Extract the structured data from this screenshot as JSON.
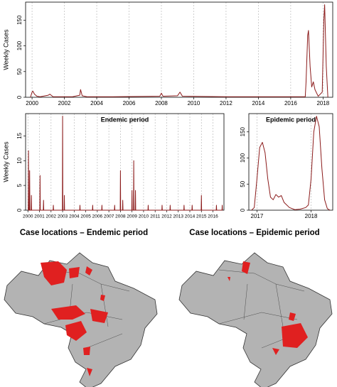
{
  "chart_data": [
    {
      "type": "line",
      "ylabel": "Weekly Cases",
      "color": "#8b1a1a",
      "x": [
        1999.9,
        2000.0,
        2000.05,
        2000.15,
        2000.3,
        2000.5,
        2001.0,
        2001.1,
        2001.3,
        2002.5,
        2002.95,
        2003.0,
        2003.1,
        2003.4,
        2005,
        2007.9,
        2008.0,
        2008.1,
        2009.0,
        2009.15,
        2009.3,
        2012,
        2016.9,
        2016.95,
        2017.05,
        2017.1,
        2017.2,
        2017.3,
        2017.4,
        2017.5,
        2017.7,
        2017.95,
        2018.05,
        2018.1,
        2018.2,
        2018.3
      ],
      "values": [
        0,
        10,
        12,
        6,
        2,
        1,
        4,
        6,
        1,
        1,
        4,
        15,
        3,
        1,
        1,
        2,
        8,
        2,
        3,
        10,
        2,
        1,
        1,
        30,
        120,
        130,
        60,
        20,
        30,
        15,
        2,
        10,
        150,
        180,
        60,
        0
      ],
      "xlim": [
        1999.6,
        2018.6
      ],
      "ylim": [
        0,
        185
      ],
      "xticks": [
        2000,
        2002,
        2004,
        2006,
        2008,
        2010,
        2012,
        2014,
        2016,
        2018
      ],
      "yticks": [
        0,
        50,
        100,
        150
      ],
      "grid": true
    },
    {
      "type": "line",
      "title": "Endemic period",
      "ylabel": "Weekly Cases",
      "color": "#8b1a1a",
      "x": [
        2000.03,
        2000.05,
        2000.07,
        2000.13,
        2000.15,
        2000.17,
        2000.28,
        2000.3,
        2000.32,
        2001.03,
        2001.05,
        2001.07,
        2001.33,
        2001.35,
        2001.37,
        2002.18,
        2002.2,
        2002.22,
        2002.98,
        2003,
        2003.02,
        2003.13,
        2003.15,
        2003.17,
        2004.48,
        2004.5,
        2004.52,
        2005.58,
        2005.6,
        2005.62,
        2006.38,
        2006.4,
        2006.42,
        2007.48,
        2007.5,
        2007.52,
        2007.98,
        2008,
        2008.02,
        2008.18,
        2008.2,
        2008.22,
        2008.98,
        2009,
        2009.02,
        2009.13,
        2009.15,
        2009.17,
        2009.28,
        2009.3,
        2009.32,
        2010.38,
        2010.4,
        2010.42,
        2011.58,
        2011.6,
        2011.62,
        2012.28,
        2012.3,
        2012.32,
        2013.48,
        2013.5,
        2013.52,
        2014.18,
        2014.2,
        2014.22,
        2014.98,
        2015,
        2015.02,
        2016.28,
        2016.3,
        2016.32,
        2016.78,
        2016.8,
        2016.82
      ],
      "values": [
        0,
        12,
        0,
        0,
        8,
        0,
        0,
        3,
        0,
        0,
        7,
        0,
        0,
        2,
        0,
        0,
        1,
        0,
        0,
        19,
        0,
        0,
        3,
        0,
        0,
        1,
        0,
        0,
        1,
        0,
        0,
        1,
        0,
        0,
        1,
        0,
        0,
        8,
        0,
        0,
        2,
        0,
        0,
        4,
        0,
        0,
        10,
        0,
        0,
        4,
        0,
        0,
        1,
        0,
        0,
        1,
        0,
        0,
        1,
        0,
        0,
        1,
        0,
        0,
        1,
        0,
        0,
        3,
        0,
        0,
        1,
        0,
        0,
        1,
        0
      ],
      "xlim": [
        1999.8,
        2016.95
      ],
      "ylim": [
        0,
        19.5
      ],
      "xticks": [
        2000,
        2001,
        2002,
        2003,
        2004,
        2005,
        2006,
        2007,
        2008,
        2009,
        2010,
        2011,
        2012,
        2013,
        2014,
        2015,
        2016
      ],
      "yticks": [
        0,
        5,
        10,
        15
      ],
      "grid": true
    },
    {
      "type": "line",
      "title": "Epidemic period",
      "color": "#8b1a1a",
      "x": [
        2016.9,
        2016.95,
        2017.0,
        2017.05,
        2017.1,
        2017.15,
        2017.2,
        2017.25,
        2017.3,
        2017.35,
        2017.4,
        2017.45,
        2017.5,
        2017.6,
        2017.7,
        2017.8,
        2017.9,
        2017.95,
        2018.0,
        2018.05,
        2018.1,
        2018.15,
        2018.2,
        2018.25,
        2018.3,
        2018.35
      ],
      "values": [
        0,
        5,
        60,
        120,
        130,
        110,
        60,
        25,
        20,
        30,
        25,
        28,
        15,
        5,
        1,
        2,
        5,
        10,
        60,
        150,
        180,
        160,
        80,
        20,
        3,
        0
      ],
      "xlim": [
        2016.85,
        2018.4
      ],
      "ylim": [
        0,
        185
      ],
      "xticks": [
        2017,
        2018
      ],
      "yticks": [
        0,
        50,
        100,
        150
      ],
      "grid": true
    }
  ],
  "maps": [
    {
      "title": "Case locations – Endemic period"
    },
    {
      "title": "Case locations – Epidemic period"
    }
  ]
}
